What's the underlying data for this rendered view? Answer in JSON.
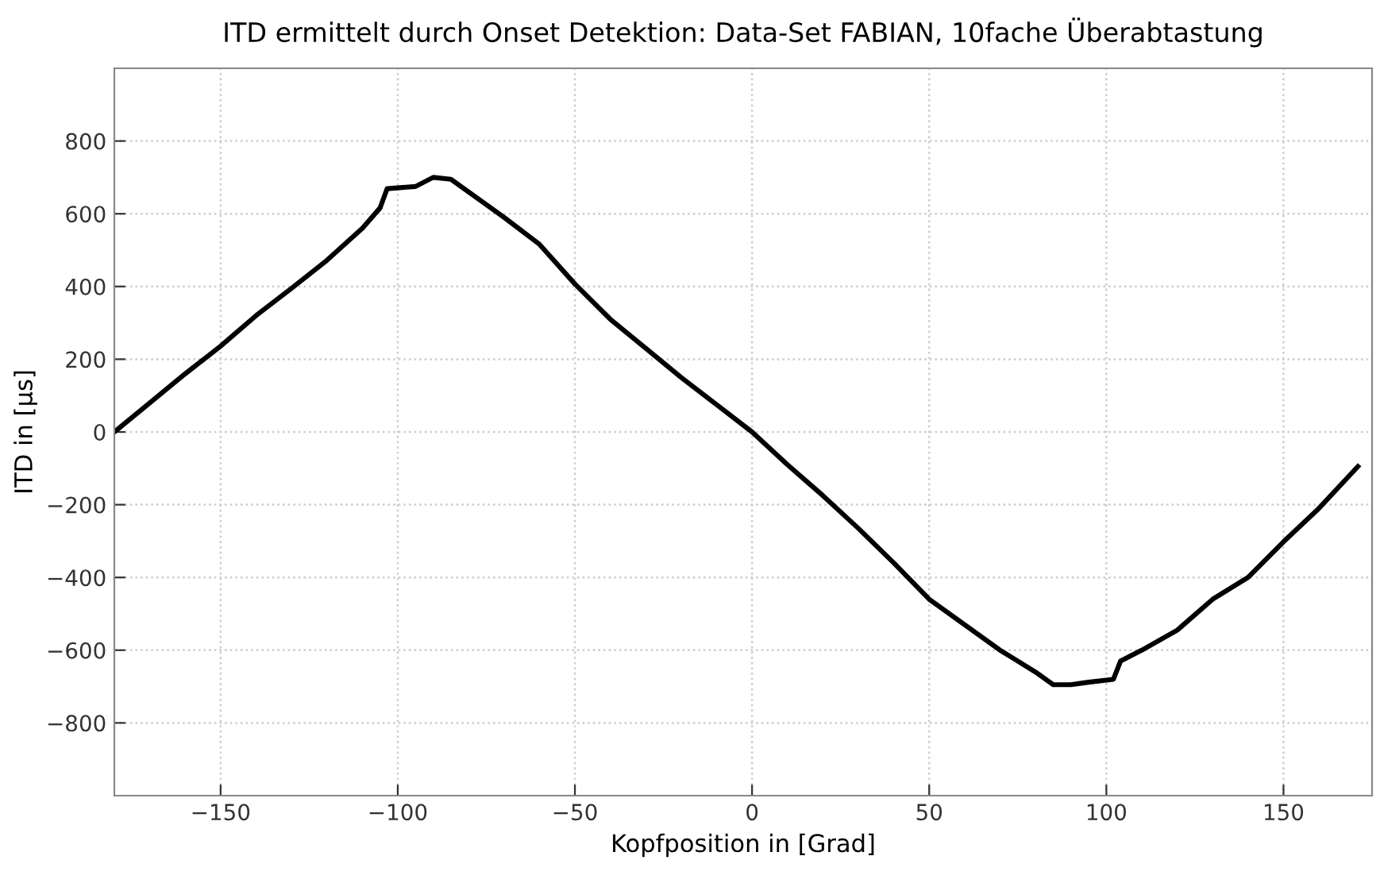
{
  "chart_data": {
    "type": "line",
    "title": "ITD ermittelt durch Onset Detektion: Data-Set FABIAN, 10fache Überabtastung",
    "xlabel": "Kopfposition in [Grad]",
    "ylabel": "ITD in [µs]",
    "series": [
      {
        "color": "#000000",
        "x": [
          -180,
          -170,
          -160,
          -150,
          -140,
          -130,
          -120,
          -110,
          -105,
          -103,
          -95,
          -90,
          -85,
          -80,
          -70,
          -60,
          -50,
          -40,
          -30,
          -20,
          -10,
          0,
          10,
          20,
          30,
          40,
          50,
          60,
          70,
          80,
          85,
          90,
          95,
          102,
          104,
          110,
          120,
          130,
          140,
          150,
          160,
          171
        ],
        "values": [
          0,
          80,
          160,
          236,
          320,
          395,
          472,
          560,
          616,
          669,
          675,
          700,
          695,
          660,
          590,
          516,
          407,
          310,
          230,
          150,
          75,
          0,
          -90,
          -175,
          -265,
          -360,
          -460,
          -530,
          -600,
          -660,
          -695,
          -695,
          -688,
          -680,
          -630,
          -600,
          -545,
          -460,
          -400,
          -302,
          -210,
          -95
        ]
      }
    ],
    "xlim": [
      -180,
      175
    ],
    "ylim": [
      -1000,
      1000
    ],
    "xticks": [
      -150,
      -100,
      -50,
      0,
      50,
      100,
      150
    ],
    "yticks": [
      -800,
      -600,
      -400,
      -200,
      0,
      200,
      400,
      600,
      800
    ],
    "grid": true,
    "line_style": "solid",
    "marker": "none"
  }
}
